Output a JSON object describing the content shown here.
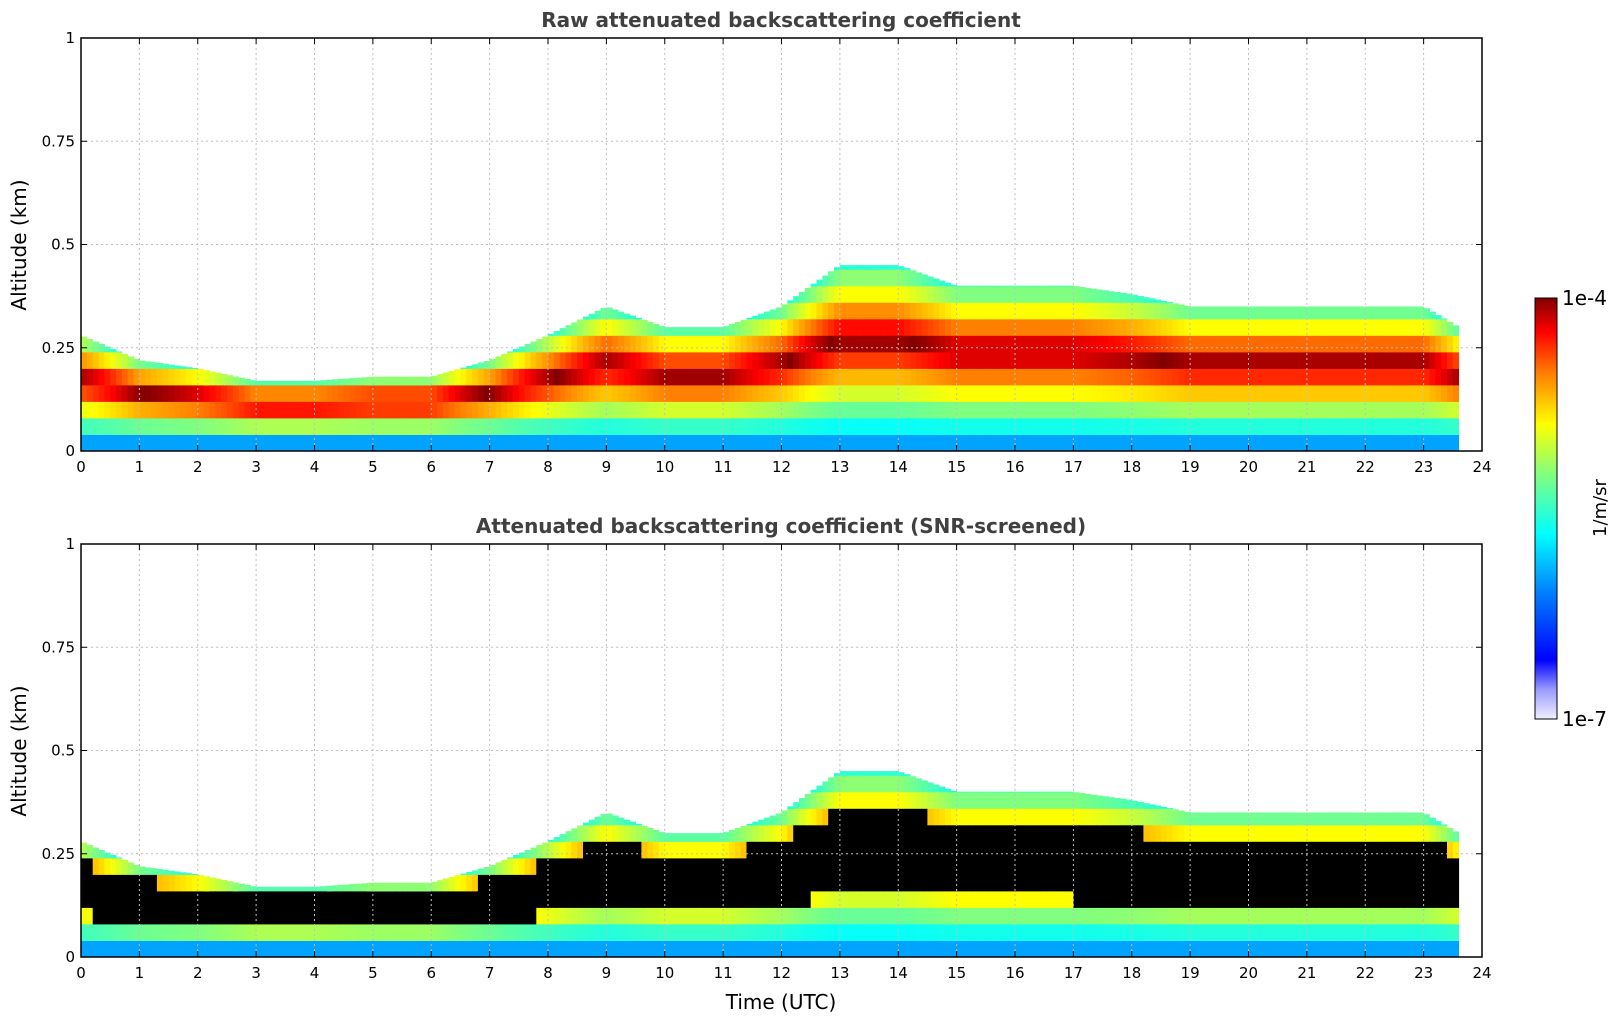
{
  "chart_data": [
    {
      "type": "heatmap",
      "title": "Raw attenuated backscattering coefficient",
      "xlabel": "",
      "ylabel": "Altitude (km)",
      "xlim": [
        0,
        24
      ],
      "ylim": [
        0,
        1
      ],
      "x_ticks": [
        "0",
        "1",
        "2",
        "3",
        "4",
        "5",
        "6",
        "7",
        "8",
        "9",
        "10",
        "11",
        "12",
        "13",
        "14",
        "15",
        "16",
        "17",
        "18",
        "19",
        "20",
        "21",
        "22",
        "23",
        "24"
      ],
      "y_ticks": [
        "0",
        "0.25",
        "0.5",
        "0.75",
        "1"
      ],
      "grid": true,
      "color_scale": "jet-log",
      "boundary_layer_top_km": {
        "time_utc": [
          0,
          1,
          2,
          3,
          4,
          5,
          6,
          7,
          8,
          9,
          10,
          11,
          12,
          13,
          14,
          15,
          16,
          17,
          18,
          19,
          20,
          21,
          22,
          23,
          23.6
        ],
        "altitude": [
          0.28,
          0.22,
          0.2,
          0.17,
          0.17,
          0.18,
          0.18,
          0.22,
          0.28,
          0.35,
          0.3,
          0.3,
          0.35,
          0.45,
          0.45,
          0.4,
          0.4,
          0.4,
          0.38,
          0.35,
          0.35,
          0.35,
          0.35,
          0.35,
          0.3
        ]
      }
    },
    {
      "type": "heatmap",
      "title": "Attenuated backscattering coefficient (SNR-screened)",
      "xlabel": "Time (UTC)",
      "ylabel": "Altitude (km)",
      "xlim": [
        0,
        24
      ],
      "ylim": [
        0,
        1
      ],
      "x_ticks": [
        "0",
        "1",
        "2",
        "3",
        "4",
        "5",
        "6",
        "7",
        "8",
        "9",
        "10",
        "11",
        "12",
        "13",
        "14",
        "15",
        "16",
        "17",
        "18",
        "19",
        "20",
        "21",
        "22",
        "23",
        "24"
      ],
      "y_ticks": [
        "0",
        "0.25",
        "0.5",
        "0.75",
        "1"
      ],
      "grid": true,
      "color_scale": "jet-log",
      "boundary_layer_top_km": {
        "time_utc": [
          0,
          1,
          2,
          3,
          4,
          5,
          6,
          7,
          8,
          9,
          10,
          11,
          12,
          13,
          14,
          15,
          16,
          17,
          18,
          19,
          20,
          21,
          22,
          23,
          23.6
        ],
        "altitude": [
          0.28,
          0.22,
          0.2,
          0.17,
          0.17,
          0.18,
          0.18,
          0.22,
          0.28,
          0.35,
          0.3,
          0.3,
          0.35,
          0.45,
          0.45,
          0.4,
          0.4,
          0.4,
          0.38,
          0.35,
          0.35,
          0.35,
          0.35,
          0.35,
          0.3
        ]
      }
    }
  ],
  "colorbar": {
    "label": "1/m/sr",
    "min_label": "1e-7",
    "max_label": "1e-4"
  }
}
